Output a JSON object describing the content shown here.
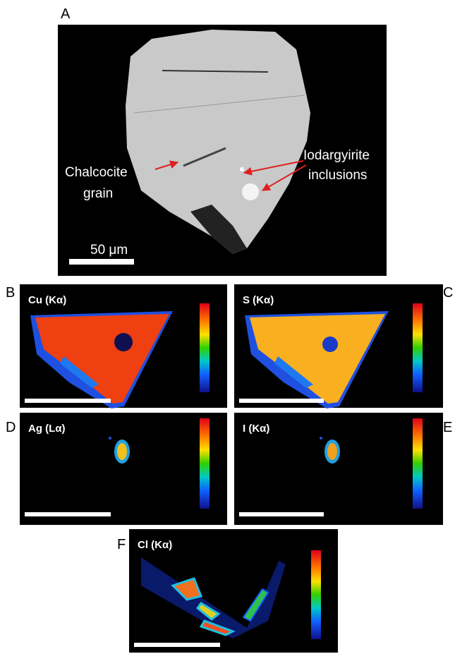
{
  "panels": [
    {
      "letter": "A",
      "annotations": [
        {
          "lines": [
            "Chalcocite",
            "grain"
          ]
        },
        {
          "lines": [
            "Iodargyirite",
            "inclusions"
          ]
        }
      ],
      "scale_label": "50 μm"
    },
    {
      "letter": "B",
      "label": "Cu (Kα)"
    },
    {
      "letter": "C",
      "label": "S (Kα)"
    },
    {
      "letter": "D",
      "label": "Ag (Lα)"
    },
    {
      "letter": "E",
      "label": "I (Kα)"
    },
    {
      "letter": "F",
      "label": "Cl (Kα)"
    }
  ]
}
